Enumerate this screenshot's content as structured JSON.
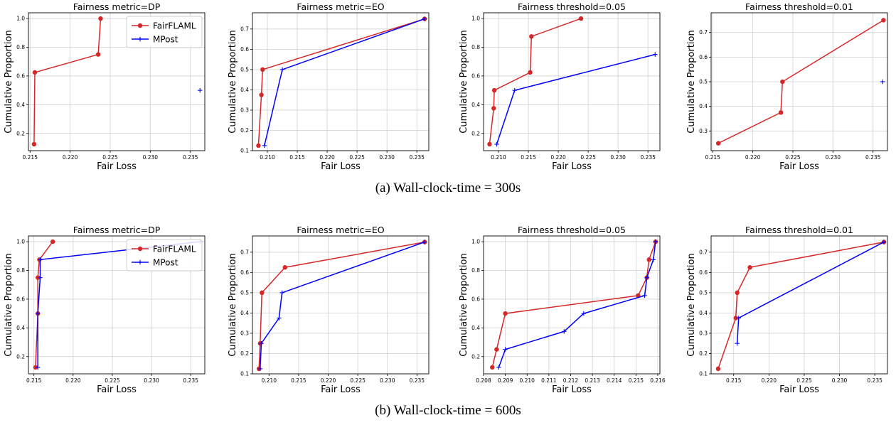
{
  "captions": [
    "(a) Wall-clock-time = 300s",
    "(b) Wall-clock-time = 600s"
  ],
  "colors": {
    "fairflaml": "#d62728",
    "mpost": "#0000ff",
    "grid": "#d0d0d0"
  },
  "chart_data": [
    {
      "type": "line",
      "row": 0,
      "col": 0,
      "title": "Fairness metric=DP",
      "xlabel": "Fair Loss",
      "ylabel": "Cumulative Proportion",
      "xlim": [
        0.2148,
        0.2368
      ],
      "ylim": [
        0.08,
        1.04
      ],
      "xticks": [
        0.215,
        0.22,
        0.225,
        0.23,
        0.235
      ],
      "yticks": [
        0.2,
        0.4,
        0.6,
        0.8,
        1.0
      ],
      "grid": true,
      "legend": "top-right",
      "series": [
        {
          "name": "FairFLAML",
          "x": [
            0.2155,
            0.2156,
            0.2235,
            0.2238
          ],
          "y": [
            0.125,
            0.625,
            0.75,
            1.0
          ]
        },
        {
          "name": "MPost",
          "x": [
            0.2362
          ],
          "y": [
            0.5
          ]
        }
      ]
    },
    {
      "type": "line",
      "row": 0,
      "col": 1,
      "title": "Fairness metric=EO",
      "xlabel": "Fair Loss",
      "ylabel": "Cumulative Proportion",
      "xlim": [
        0.2075,
        0.237
      ],
      "ylim": [
        0.1,
        0.78
      ],
      "xticks": [
        0.21,
        0.215,
        0.22,
        0.225,
        0.23,
        0.235
      ],
      "yticks": [
        0.1,
        0.2,
        0.3,
        0.4,
        0.5,
        0.6,
        0.7
      ],
      "grid": true,
      "legend": "",
      "series": [
        {
          "name": "FairFLAML",
          "x": [
            0.2085,
            0.209,
            0.2092,
            0.2363
          ],
          "y": [
            0.125,
            0.375,
            0.5,
            0.75
          ]
        },
        {
          "name": "MPost",
          "x": [
            0.2095,
            0.2125,
            0.2363
          ],
          "y": [
            0.125,
            0.5,
            0.75
          ]
        }
      ]
    },
    {
      "type": "line",
      "row": 0,
      "col": 2,
      "title": "Fairness threshold=0.05",
      "xlabel": "Fair Loss",
      "ylabel": "Cumulative Proportion",
      "xlim": [
        0.2075,
        0.237
      ],
      "ylim": [
        0.08,
        1.04
      ],
      "xticks": [
        0.21,
        0.215,
        0.22,
        0.225,
        0.23,
        0.235
      ],
      "yticks": [
        0.2,
        0.4,
        0.6,
        0.8,
        1.0
      ],
      "grid": true,
      "legend": "",
      "series": [
        {
          "name": "FairFLAML",
          "x": [
            0.2085,
            0.2092,
            0.2093,
            0.2153,
            0.2155,
            0.2238
          ],
          "y": [
            0.125,
            0.375,
            0.5,
            0.625,
            0.875,
            1.0
          ]
        },
        {
          "name": "MPost",
          "x": [
            0.2097,
            0.2127,
            0.2362
          ],
          "y": [
            0.125,
            0.5,
            0.75
          ]
        }
      ]
    },
    {
      "type": "line",
      "row": 0,
      "col": 3,
      "title": "Fairness threshold=0.01",
      "xlabel": "Fair Loss",
      "ylabel": "Cumulative Proportion",
      "xlim": [
        0.2148,
        0.2368
      ],
      "ylim": [
        0.22,
        0.78
      ],
      "xticks": [
        0.215,
        0.22,
        0.225,
        0.23,
        0.235
      ],
      "yticks": [
        0.3,
        0.4,
        0.5,
        0.6,
        0.7
      ],
      "grid": true,
      "legend": "",
      "series": [
        {
          "name": "FairFLAML",
          "x": [
            0.2157,
            0.2235,
            0.2237,
            0.2363
          ],
          "y": [
            0.25,
            0.375,
            0.5,
            0.75
          ]
        },
        {
          "name": "MPost",
          "x": [
            0.2362
          ],
          "y": [
            0.5
          ]
        }
      ]
    },
    {
      "type": "line",
      "row": 1,
      "col": 0,
      "title": "Fairness metric=DP",
      "xlabel": "Fair Loss",
      "ylabel": "Cumulative Proportion",
      "xlim": [
        0.2143,
        0.2368
      ],
      "ylim": [
        0.08,
        1.04
      ],
      "xticks": [
        0.215,
        0.22,
        0.225,
        0.23,
        0.235
      ],
      "yticks": [
        0.2,
        0.4,
        0.6,
        0.8,
        1.0
      ],
      "grid": true,
      "legend": "top-right",
      "series": [
        {
          "name": "FairFLAML",
          "x": [
            0.2152,
            0.2155,
            0.2155,
            0.2157,
            0.2174
          ],
          "y": [
            0.125,
            0.5,
            0.75,
            0.875,
            1.0
          ]
        },
        {
          "name": "MPost",
          "x": [
            0.2155,
            0.2155,
            0.2158,
            0.2158,
            0.2362
          ],
          "y": [
            0.125,
            0.5,
            0.75,
            0.875,
            1.0
          ]
        }
      ]
    },
    {
      "type": "line",
      "row": 1,
      "col": 1,
      "title": "Fairness metric=EO",
      "xlabel": "Fair Loss",
      "ylabel": "Cumulative Proportion",
      "xlim": [
        0.2072,
        0.237
      ],
      "ylim": [
        0.1,
        0.78
      ],
      "xticks": [
        0.21,
        0.215,
        0.22,
        0.225,
        0.23,
        0.235
      ],
      "yticks": [
        0.1,
        0.2,
        0.3,
        0.4,
        0.5,
        0.6,
        0.7
      ],
      "grid": true,
      "legend": "",
      "series": [
        {
          "name": "FairFLAML",
          "x": [
            0.2083,
            0.2085,
            0.2088,
            0.2127,
            0.2363
          ],
          "y": [
            0.125,
            0.25,
            0.5,
            0.625,
            0.75
          ]
        },
        {
          "name": "MPost",
          "x": [
            0.2085,
            0.2087,
            0.2117,
            0.2122,
            0.2363
          ],
          "y": [
            0.125,
            0.25,
            0.375,
            0.5,
            0.75
          ]
        }
      ]
    },
    {
      "type": "line",
      "row": 1,
      "col": 2,
      "title": "Fairness threshold=0.05",
      "xlabel": "Fair Loss",
      "ylabel": "Cumulative Proportion",
      "xlim": [
        0.208,
        0.2161
      ],
      "ylim": [
        0.08,
        1.04
      ],
      "xticks": [
        0.208,
        0.209,
        0.21,
        0.211,
        0.212,
        0.213,
        0.214,
        0.215,
        0.216
      ],
      "yticks": [
        0.2,
        0.4,
        0.6,
        0.8,
        1.0
      ],
      "grid": true,
      "legend": "",
      "series": [
        {
          "name": "FairFLAML",
          "x": [
            0.2084,
            0.2086,
            0.209,
            0.2151,
            0.2155,
            0.2156,
            0.2159
          ],
          "y": [
            0.125,
            0.25,
            0.5,
            0.625,
            0.75,
            0.875,
            1.0
          ]
        },
        {
          "name": "MPost",
          "x": [
            0.2087,
            0.209,
            0.2117,
            0.2126,
            0.2154,
            0.2155,
            0.2158,
            0.2159
          ],
          "y": [
            0.125,
            0.25,
            0.375,
            0.5,
            0.625,
            0.75,
            0.875,
            1.0
          ]
        }
      ]
    },
    {
      "type": "line",
      "row": 1,
      "col": 3,
      "title": "Fairness threshold=0.01",
      "xlabel": "Fair Loss",
      "ylabel": "Cumulative Proportion",
      "xlim": [
        0.2118,
        0.2368
      ],
      "ylim": [
        0.1,
        0.78
      ],
      "xticks": [
        0.215,
        0.22,
        0.225,
        0.23,
        0.235
      ],
      "yticks": [
        0.1,
        0.2,
        0.3,
        0.4,
        0.5,
        0.6,
        0.7
      ],
      "grid": true,
      "legend": "",
      "series": [
        {
          "name": "FairFLAML",
          "x": [
            0.2128,
            0.2153,
            0.2155,
            0.2173,
            0.2363
          ],
          "y": [
            0.125,
            0.375,
            0.5,
            0.625,
            0.75
          ]
        },
        {
          "name": "MPost",
          "x": [
            0.2155,
            0.2157,
            0.2363
          ],
          "y": [
            0.25,
            0.375,
            0.75
          ]
        }
      ]
    }
  ]
}
